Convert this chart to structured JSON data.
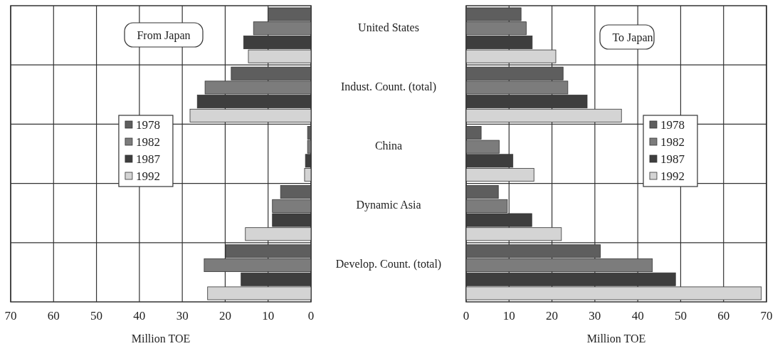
{
  "chart_data": [
    {
      "type": "bar",
      "orientation": "horizontal",
      "title": "From Japan",
      "xlabel": "Million TOE",
      "categories": [
        "United States",
        "Indust. Count. (total)",
        "China",
        "Dynamic Asia",
        "Develop. Count. (total)"
      ],
      "series": [
        {
          "name": "1978",
          "color": "#5e5e5e",
          "values": [
            10.0,
            18.6,
            0.8,
            7.1,
            19.9
          ]
        },
        {
          "name": "1982",
          "color": "#7c7c7c",
          "values": [
            13.4,
            24.7,
            0.8,
            9.0,
            24.9
          ]
        },
        {
          "name": "1987",
          "color": "#3e3e3e",
          "values": [
            15.7,
            26.5,
            1.3,
            9.0,
            16.3
          ]
        },
        {
          "name": "1992",
          "color": "#d4d4d4",
          "values": [
            14.6,
            28.2,
            1.5,
            15.3,
            24.1
          ]
        }
      ],
      "xlim": [
        70,
        0
      ],
      "xticks": [
        70,
        60,
        50,
        40,
        30,
        20,
        10,
        0
      ],
      "grid": true,
      "legend": "left"
    },
    {
      "type": "bar",
      "orientation": "horizontal",
      "title": "To Japan",
      "xlabel": "Million TOE",
      "categories": [
        null,
        null,
        null,
        null,
        null
      ],
      "series": [
        {
          "name": "1978",
          "color": "#5e5e5e",
          "values": [
            12.8,
            22.6,
            3.5,
            7.5,
            31.3
          ]
        },
        {
          "name": "1982",
          "color": "#7c7c7c",
          "values": [
            14.0,
            23.7,
            7.7,
            9.6,
            43.4
          ]
        },
        {
          "name": "1987",
          "color": "#3e3e3e",
          "values": [
            15.4,
            28.2,
            10.9,
            15.3,
            48.8
          ]
        },
        {
          "name": "1992",
          "color": "#d4d4d4",
          "values": [
            20.9,
            36.2,
            15.8,
            22.2,
            68.8
          ]
        }
      ],
      "xlim": [
        0,
        70
      ],
      "xticks": [
        0,
        10,
        20,
        30,
        40,
        50,
        60,
        70
      ],
      "grid": true,
      "legend": "right",
      "tick_labels": "x"
    }
  ]
}
